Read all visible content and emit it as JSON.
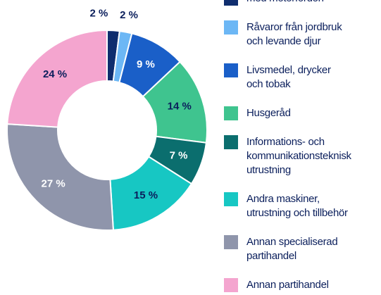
{
  "chart_data": {
    "type": "donut",
    "categories": [
      [
        "med motorfordon"
      ],
      [
        "Råvaror från jordbruk",
        "och levande djur"
      ],
      [
        "Livsmedel, drycker",
        "och tobak"
      ],
      [
        "Husgeråd"
      ],
      [
        "Informations- och",
        "kommunikationsteknisk",
        "utrustning"
      ],
      [
        "Andra maskiner,",
        "utrustning och tillbehör"
      ],
      [
        "Annan specialiserad",
        "partihandel"
      ],
      [
        "Annan partihandel"
      ]
    ],
    "values": [
      2,
      2,
      9,
      14,
      7,
      15,
      27,
      24
    ],
    "value_labels": [
      "2 %",
      "2 %",
      "9 %",
      "14 %",
      "7 %",
      "15 %",
      "27 %",
      "24 %"
    ],
    "colors": [
      "#0f2d6e",
      "#6cb7f5",
      "#1a5fc8",
      "#3fc48f",
      "#0b6e6e",
      "#17c7c3",
      "#8f95ab",
      "#f4a5cf"
    ]
  }
}
